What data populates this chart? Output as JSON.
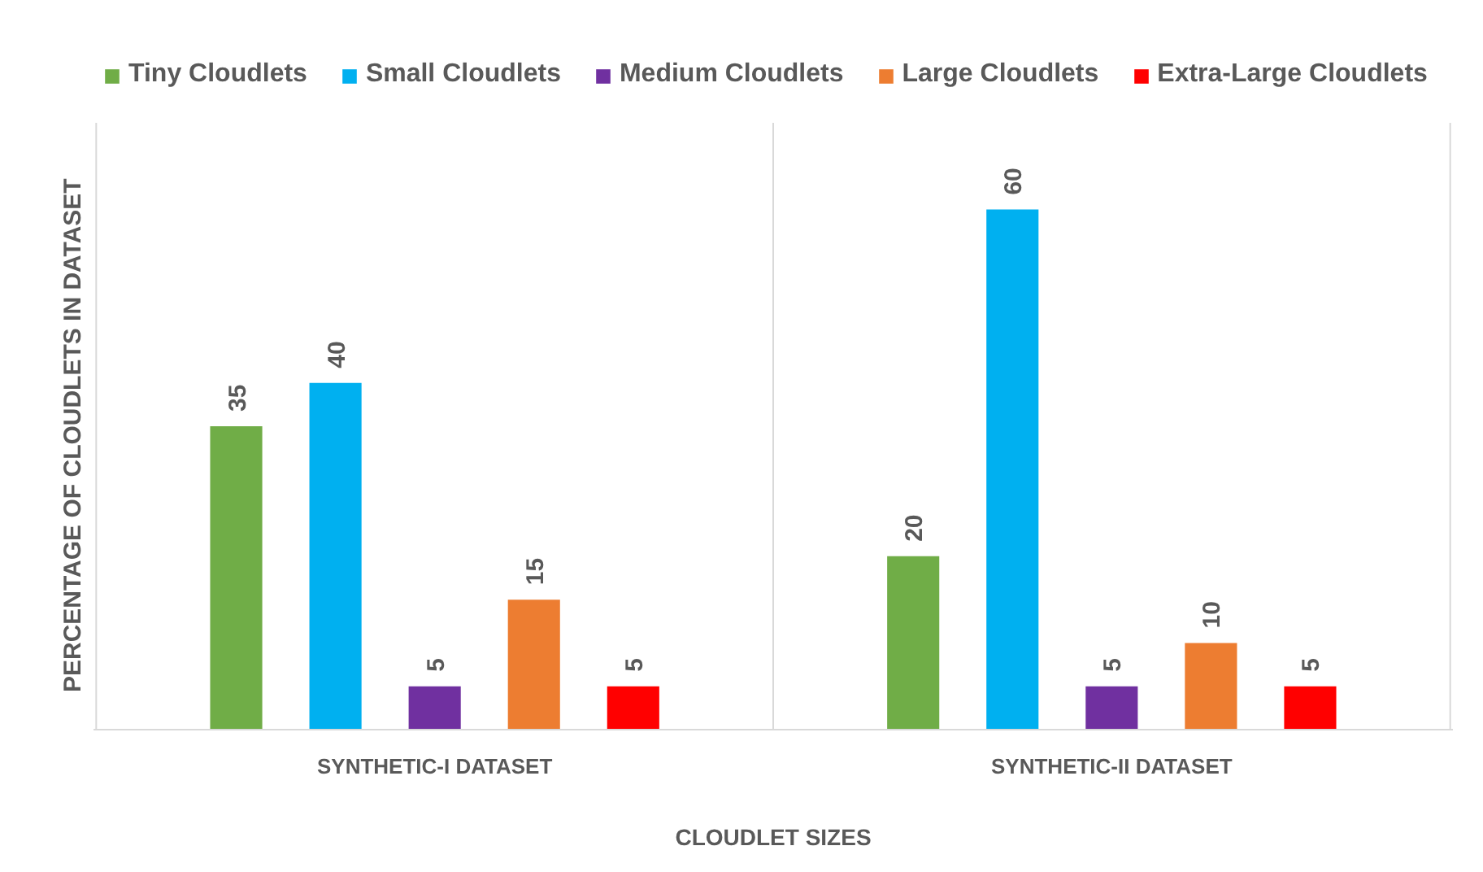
{
  "chart_data": {
    "type": "bar",
    "categories": [
      "SYNTHETIC-I DATASET",
      "SYNTHETIC-II DATASET"
    ],
    "series": [
      {
        "name": "Tiny Cloudlets",
        "color": "#70ad47",
        "values": [
          35,
          20
        ]
      },
      {
        "name": "Small Cloudlets",
        "color": "#00b0f0",
        "values": [
          40,
          60
        ]
      },
      {
        "name": "Medium Cloudlets",
        "color": "#7030a0",
        "values": [
          5,
          5
        ]
      },
      {
        "name": "Large Cloudlets",
        "color": "#ed7d31",
        "values": [
          15,
          10
        ]
      },
      {
        "name": "Extra-Large Cloudlets",
        "color": "#ff0000",
        "values": [
          5,
          5
        ]
      }
    ],
    "xlabel": "CLOUDLET SIZES",
    "ylabel": "PERCENTAGE OF CLOUDLETS IN DATASET",
    "ylim": [
      0,
      70
    ],
    "data_labels": true,
    "legend": "top",
    "grid": "x",
    "tick_labels": "x"
  }
}
